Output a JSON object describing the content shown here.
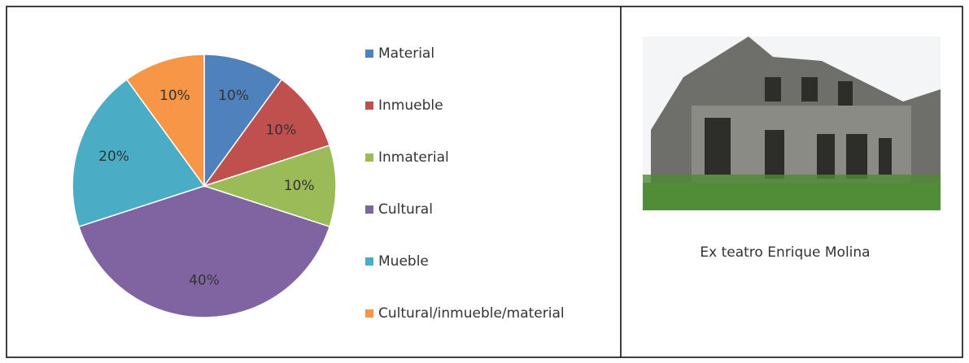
{
  "chart_data": {
    "type": "pie",
    "categories": [
      "Material",
      "Inmueble",
      "Inmaterial",
      "Cultural",
      "Mueble",
      "Cultural/inmueble/material"
    ],
    "values": [
      10,
      10,
      10,
      40,
      20,
      10
    ],
    "value_labels": [
      "10%",
      "10%",
      "10%",
      "40%",
      "20%",
      "10%"
    ],
    "colors": [
      "#4f81bd",
      "#c0504d",
      "#9bbb59",
      "#8064a2",
      "#4bacc6",
      "#f79646"
    ],
    "legend": "right"
  },
  "caption": "Ex teatro Enrique Molina"
}
